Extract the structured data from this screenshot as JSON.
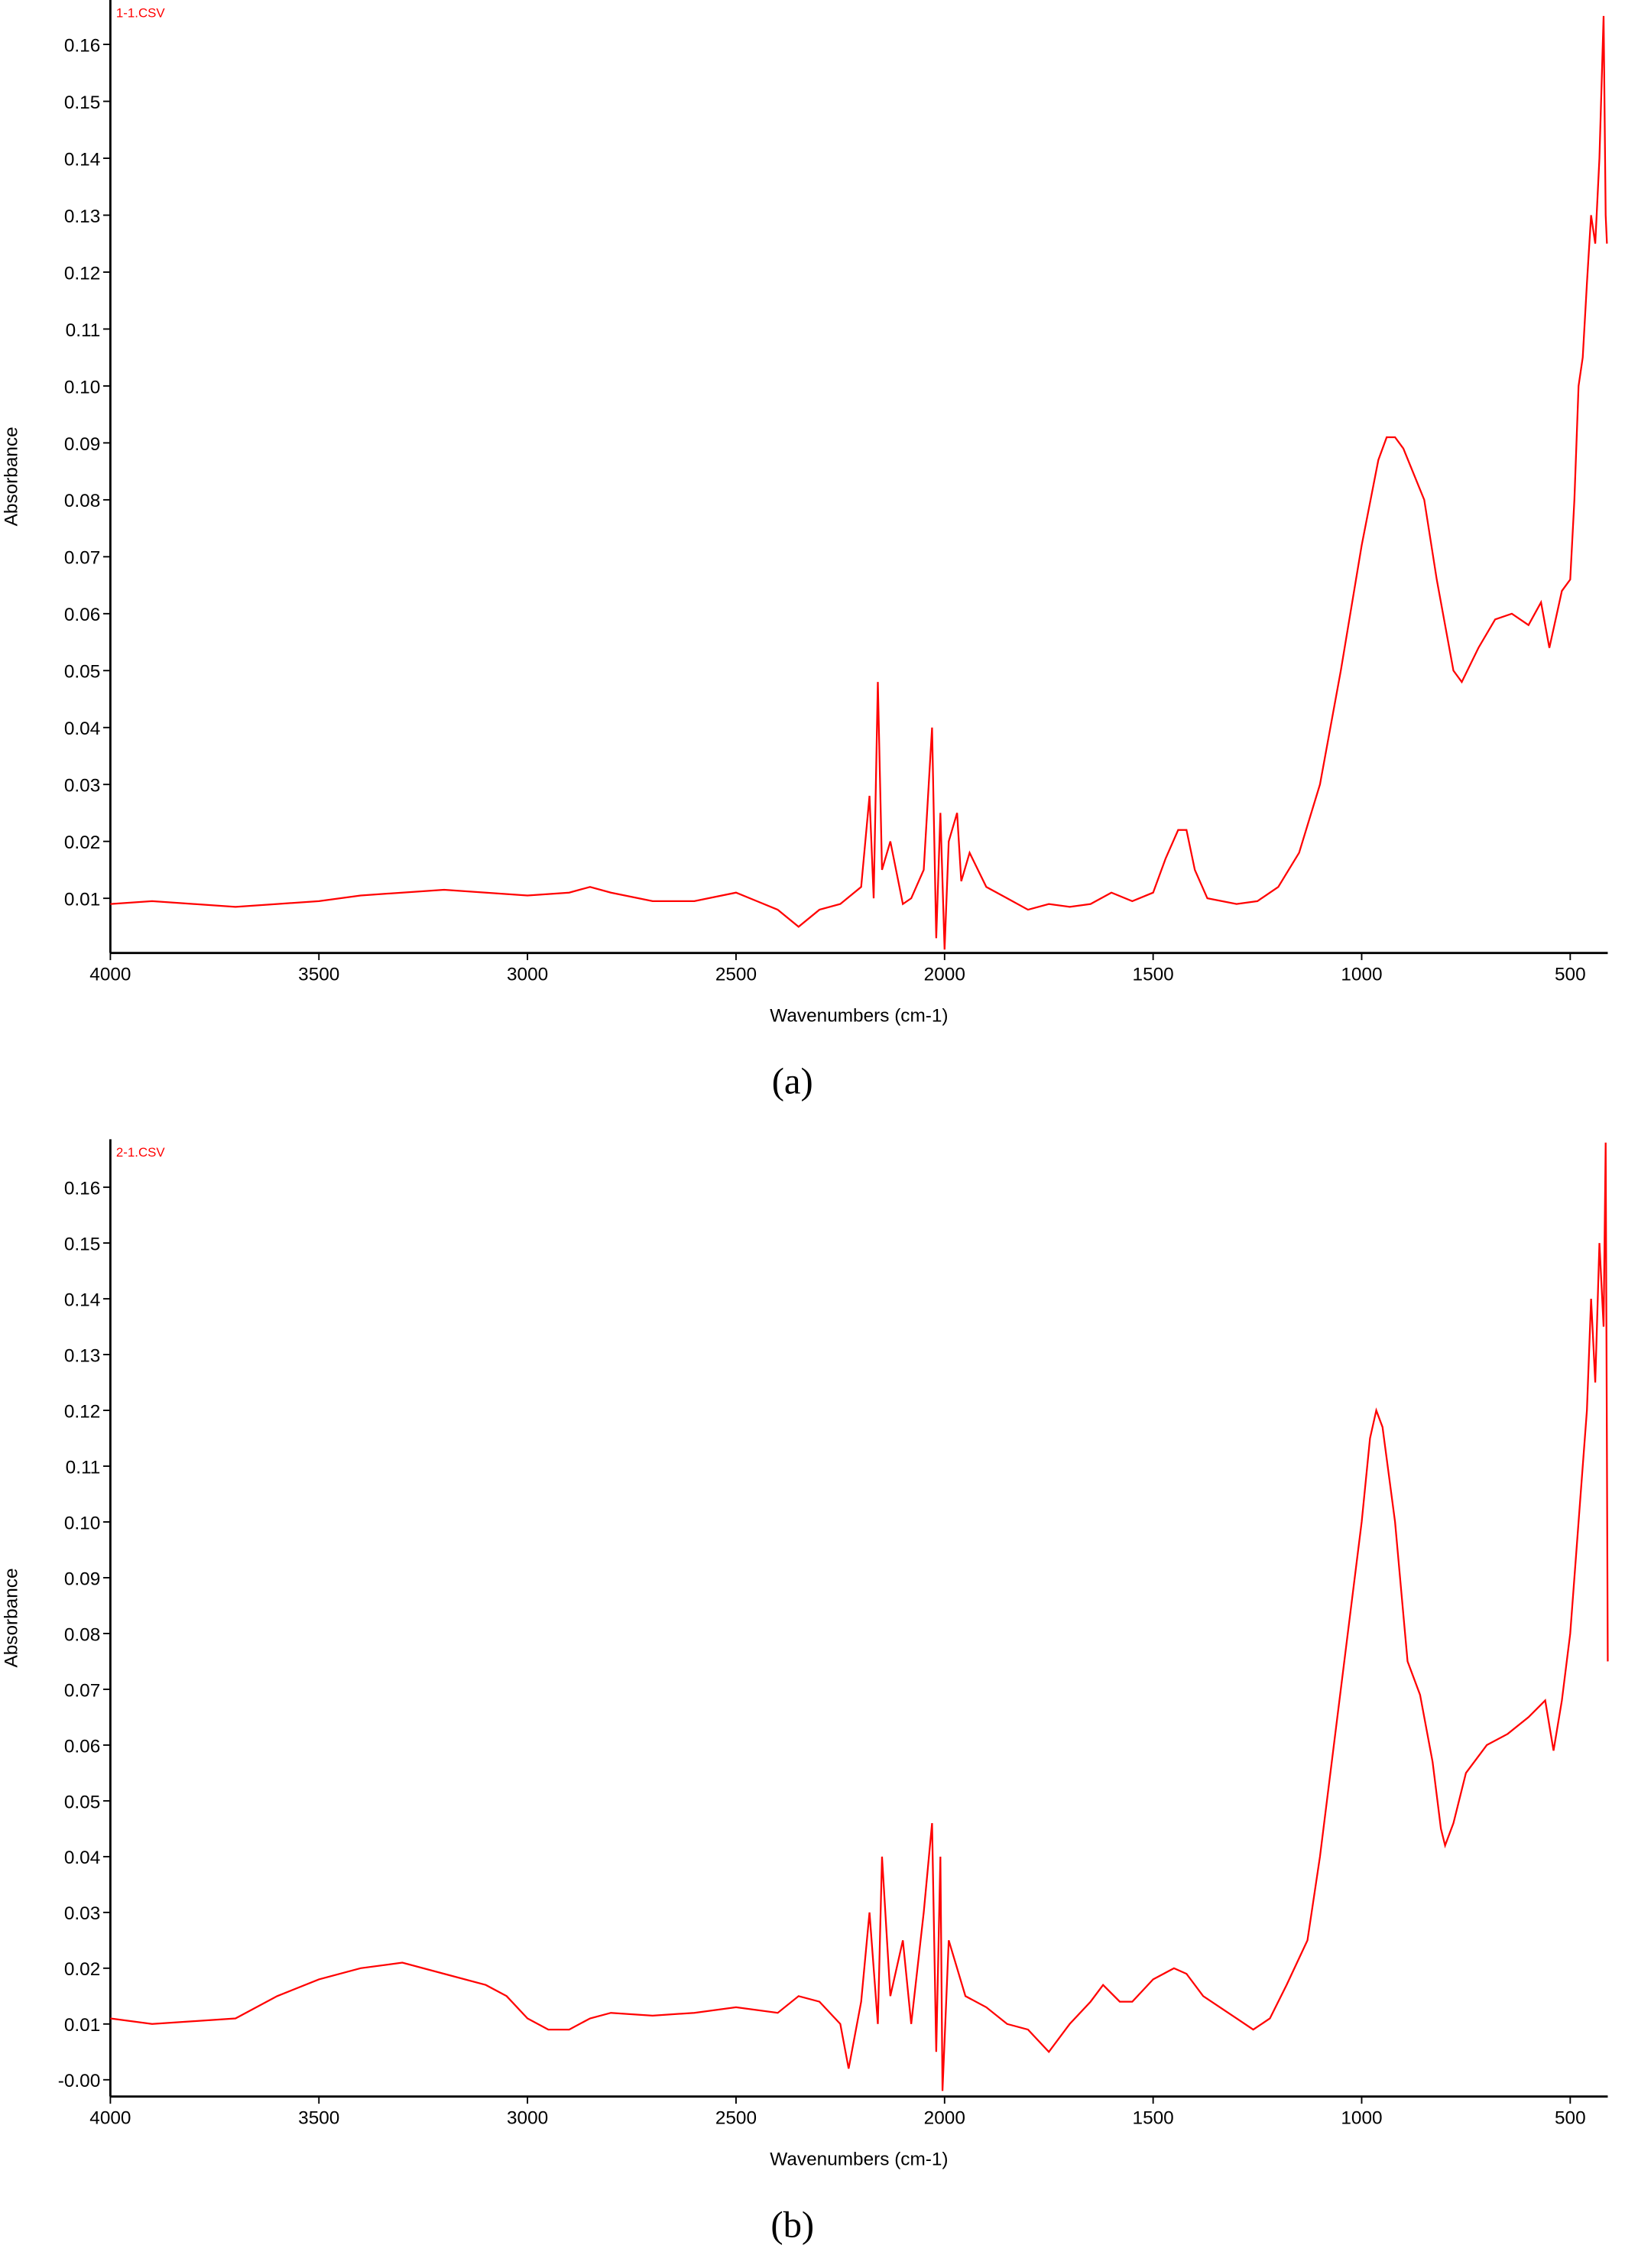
{
  "chart_data": [
    {
      "type": "line",
      "caption": "(a)",
      "xlabel": "Wavenumbers (cm-1)",
      "ylabel": "Absorbance",
      "xlim": [
        4000,
        410
      ],
      "ylim": [
        0.0004,
        0.1678
      ],
      "xticks": [
        4000,
        3500,
        3000,
        2500,
        2000,
        1500,
        1000,
        500
      ],
      "yticks": [
        0.01,
        0.02,
        0.03,
        0.04,
        0.05,
        0.06,
        0.07,
        0.08,
        0.09,
        {
          "value": 0.1,
          "label": "0.10"
        },
        0.11,
        0.12,
        0.13,
        0.14,
        0.15,
        0.16
      ],
      "x": [
        4000,
        3900,
        3800,
        3700,
        3600,
        3500,
        3400,
        3300,
        3200,
        3100,
        3000,
        2900,
        2850,
        2800,
        2700,
        2600,
        2500,
        2450,
        2400,
        2350,
        2300,
        2250,
        2200,
        2180,
        2170,
        2160,
        2150,
        2130,
        2100,
        2080,
        2050,
        2030,
        2020,
        2010,
        2000,
        1990,
        1970,
        1960,
        1940,
        1900,
        1850,
        1800,
        1750,
        1700,
        1650,
        1600,
        1550,
        1500,
        1470,
        1440,
        1420,
        1400,
        1370,
        1300,
        1250,
        1200,
        1150,
        1100,
        1050,
        1000,
        960,
        940,
        920,
        900,
        850,
        820,
        780,
        760,
        720,
        680,
        640,
        600,
        570,
        550,
        520,
        500,
        490,
        480,
        470,
        460,
        450,
        440,
        430,
        420,
        415,
        412
      ],
      "series": [
        {
          "name": "1-1.CSV",
          "color": "#ff0000",
          "values": [
            0.009,
            0.0095,
            0.009,
            0.0085,
            0.009,
            0.0095,
            0.0105,
            0.011,
            0.0115,
            0.011,
            0.0105,
            0.011,
            0.012,
            0.011,
            0.0095,
            0.0095,
            0.011,
            0.0095,
            0.008,
            0.005,
            0.008,
            0.009,
            0.012,
            0.028,
            0.01,
            0.048,
            0.015,
            0.02,
            0.009,
            0.01,
            0.015,
            0.04,
            0.003,
            0.025,
            0.001,
            0.02,
            0.025,
            0.013,
            0.018,
            0.012,
            0.01,
            0.008,
            0.009,
            0.0085,
            0.009,
            0.011,
            0.0095,
            0.011,
            0.017,
            0.022,
            0.022,
            0.015,
            0.01,
            0.009,
            0.0095,
            0.012,
            0.018,
            0.03,
            0.05,
            0.072,
            0.087,
            0.091,
            0.091,
            0.089,
            0.08,
            0.066,
            0.05,
            0.048,
            0.054,
            0.059,
            0.06,
            0.058,
            0.062,
            0.054,
            0.064,
            0.066,
            0.08,
            0.1,
            0.105,
            0.118,
            0.13,
            0.125,
            0.14,
            0.165,
            0.13,
            0.125
          ]
        }
      ]
    },
    {
      "type": "line",
      "caption": "(b)",
      "xlabel": "Wavenumbers (cm-1)",
      "ylabel": "Absorbance",
      "xlim": [
        4000,
        410
      ],
      "ylim": [
        -0.003,
        0.1686
      ],
      "xticks": [
        4000,
        3500,
        3000,
        2500,
        2000,
        1500,
        1000,
        500
      ],
      "yticks": [
        {
          "value": 0,
          "label": "-0.00"
        },
        0.01,
        0.02,
        0.03,
        0.04,
        0.05,
        0.06,
        0.07,
        0.08,
        0.09,
        {
          "value": 0.1,
          "label": "0.10"
        },
        0.11,
        0.12,
        0.13,
        0.14,
        0.15,
        0.16
      ],
      "x": [
        4000,
        3900,
        3800,
        3700,
        3600,
        3500,
        3400,
        3300,
        3200,
        3100,
        3050,
        3000,
        2950,
        2900,
        2850,
        2800,
        2700,
        2600,
        2500,
        2400,
        2350,
        2300,
        2250,
        2230,
        2200,
        2180,
        2160,
        2150,
        2130,
        2100,
        2080,
        2050,
        2030,
        2020,
        2010,
        2005,
        1990,
        1970,
        1950,
        1900,
        1850,
        1800,
        1750,
        1700,
        1650,
        1620,
        1580,
        1550,
        1500,
        1450,
        1420,
        1380,
        1300,
        1260,
        1220,
        1180,
        1130,
        1100,
        1050,
        1000,
        980,
        965,
        950,
        920,
        890,
        860,
        830,
        810,
        800,
        780,
        750,
        700,
        650,
        600,
        560,
        540,
        520,
        500,
        480,
        460,
        450,
        440,
        430,
        420,
        415,
        410
      ],
      "series": [
        {
          "name": "2-1.CSV",
          "color": "#ff0000",
          "values": [
            0.011,
            0.01,
            0.0105,
            0.011,
            0.015,
            0.018,
            0.02,
            0.021,
            0.019,
            0.017,
            0.015,
            0.011,
            0.009,
            0.009,
            0.011,
            0.012,
            0.0115,
            0.012,
            0.013,
            0.012,
            0.015,
            0.014,
            0.01,
            0.002,
            0.014,
            0.03,
            0.01,
            0.04,
            0.015,
            0.025,
            0.01,
            0.03,
            0.046,
            0.005,
            0.04,
            -0.002,
            0.025,
            0.02,
            0.015,
            0.013,
            0.01,
            0.009,
            0.005,
            0.01,
            0.014,
            0.017,
            0.014,
            0.014,
            0.018,
            0.02,
            0.019,
            0.015,
            0.011,
            0.009,
            0.011,
            0.017,
            0.025,
            0.04,
            0.07,
            0.1,
            0.115,
            0.12,
            0.117,
            0.1,
            0.075,
            0.069,
            0.057,
            0.045,
            0.042,
            0.046,
            0.055,
            0.06,
            0.062,
            0.065,
            0.068,
            0.059,
            0.068,
            0.08,
            0.1,
            0.12,
            0.14,
            0.125,
            0.15,
            0.135,
            0.168,
            0.075
          ]
        }
      ]
    }
  ]
}
